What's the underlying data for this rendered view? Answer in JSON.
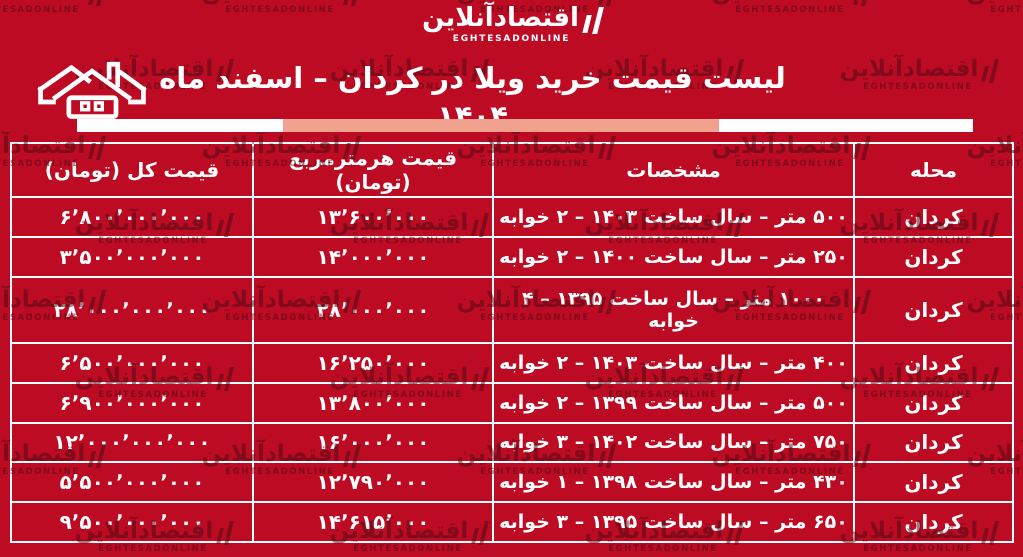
{
  "page": {
    "background_color": "#bd0b23",
    "accent_salmon": "#f0a28e",
    "watermark_color": "#4a0a16",
    "text_color": "#ffffff"
  },
  "logo": {
    "persian": "اقتصادآنلاین",
    "latin": "EGHTESADONLINE"
  },
  "watermark": {
    "persian": "اقتصادآنلاین",
    "latin": "EGHTESADONLINE"
  },
  "header": {
    "title": "لیست قیمت خرید ویلا در کردان – اسفند ماه ۱۴۰۴"
  },
  "table": {
    "columns": [
      "محله",
      "مشخصات",
      "قیمت هرمترمربع (تومان)",
      "قیمت کل (تومان)"
    ],
    "rows": [
      {
        "neighborhood": "کردان",
        "specs": "۵۰۰ متر – سال ساخت ۱۴۰۳ – ۲ خوابه",
        "price_per_m2": "۱۳٬۶۰۰٬۰۰۰",
        "total_price": "۶٬۸۰۰٬۰۰۰٬۰۰۰"
      },
      {
        "neighborhood": "کردان",
        "specs": "۲۵۰ متر – سال ساخت ۱۴۰۰ – ۲ خوابه",
        "price_per_m2": "۱۴٬۰۰۰٬۰۰۰",
        "total_price": "۳٬۵۰۰٬۰۰۰٬۰۰۰"
      },
      {
        "neighborhood": "کردان",
        "specs": "۱۰۰۰ متر – سال ساخت ۱۳۹۵ – ۴ خوابه",
        "price_per_m2": "۲۸٬۰۰۰٬۰۰۰",
        "total_price": "۲۸٬۰۰۰٬۰۰۰٬۰۰۰"
      },
      {
        "neighborhood": "کردان",
        "specs": "۴۰۰ متر – سال ساخت ۱۴۰۳ – ۲ خوابه",
        "price_per_m2": "۱۶٬۲۵۰٬۰۰۰",
        "total_price": "۶٬۵۰۰٬۰۰۰٬۰۰۰"
      },
      {
        "neighborhood": "کردان",
        "specs": "۵۰۰ متر – سال ساخت ۱۳۹۹ – ۲ خوابه",
        "price_per_m2": "۱۳٬۸۰۰٬۰۰۰",
        "total_price": "۶٬۹۰۰٬۰۰۰٬۰۰۰"
      },
      {
        "neighborhood": "کردان",
        "specs": "۷۵۰ متر – سال ساخت ۱۴۰۲ – ۳ خوابه",
        "price_per_m2": "۱۶٬۰۰۰٬۰۰۰",
        "total_price": "۱۲٬۰۰۰٬۰۰۰٬۰۰۰"
      },
      {
        "neighborhood": "کردان",
        "specs": "۴۳۰ متر – سال ساخت ۱۳۹۸ – ۱ خوابه",
        "price_per_m2": "۱۲٬۷۹۰٬۰۰۰",
        "total_price": "۵٬۵۰۰٬۰۰۰٬۰۰۰"
      },
      {
        "neighborhood": "کردان",
        "specs": "۶۵۰ متر – سال ساخت ۱۳۹۵ – ۳ خوابه",
        "price_per_m2": "۱۴٬۶۱۵٬۰۰۰",
        "total_price": "۹٬۵۰۰٬۰۰۰٬۰۰۰"
      }
    ]
  },
  "chart_data": {
    "type": "table",
    "title": "لیست قیمت خرید ویلا در کردان – اسفند ماه ۱۴۰۴",
    "columns": [
      "محله",
      "مشخصات",
      "قیمت هرمترمربع (تومان)",
      "قیمت کل (تومان)"
    ],
    "rows": [
      {
        "neighborhood": "کردان",
        "area_m2": 500,
        "build_year": 1403,
        "bedrooms": 2,
        "price_per_m2_toman": 13600000,
        "total_price_toman": 6800000000
      },
      {
        "neighborhood": "کردان",
        "area_m2": 250,
        "build_year": 1400,
        "bedrooms": 2,
        "price_per_m2_toman": 14000000,
        "total_price_toman": 3500000000
      },
      {
        "neighborhood": "کردان",
        "area_m2": 1000,
        "build_year": 1395,
        "bedrooms": 4,
        "price_per_m2_toman": 28000000,
        "total_price_toman": 28000000000
      },
      {
        "neighborhood": "کردان",
        "area_m2": 400,
        "build_year": 1403,
        "bedrooms": 2,
        "price_per_m2_toman": 16250000,
        "total_price_toman": 6500000000
      },
      {
        "neighborhood": "کردان",
        "area_m2": 500,
        "build_year": 1399,
        "bedrooms": 2,
        "price_per_m2_toman": 13800000,
        "total_price_toman": 6900000000
      },
      {
        "neighborhood": "کردان",
        "area_m2": 750,
        "build_year": 1402,
        "bedrooms": 3,
        "price_per_m2_toman": 16000000,
        "total_price_toman": 12000000000
      },
      {
        "neighborhood": "کردان",
        "area_m2": 430,
        "build_year": 1398,
        "bedrooms": 1,
        "price_per_m2_toman": 12790000,
        "total_price_toman": 5500000000
      },
      {
        "neighborhood": "کردان",
        "area_m2": 650,
        "build_year": 1395,
        "bedrooms": 3,
        "price_per_m2_toman": 14615000,
        "total_price_toman": 9500000000
      }
    ]
  }
}
